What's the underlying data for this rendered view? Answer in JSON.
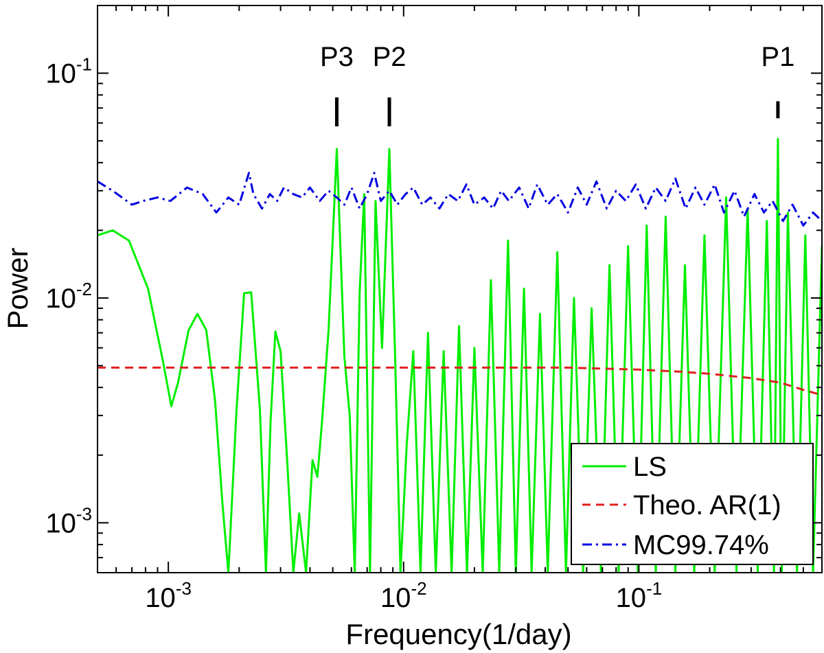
{
  "chart_data": {
    "type": "line",
    "title": "",
    "xlabel": "Frequency(1/day)",
    "ylabel": "Power",
    "xscale": "log",
    "yscale": "log",
    "xlim": [
      0.0005,
      0.6
    ],
    "ylim": [
      0.0006,
      0.2
    ],
    "x_ticks": [
      {
        "value": 0.001,
        "base": "10",
        "exp": "-3"
      },
      {
        "value": 0.01,
        "base": "10",
        "exp": "-2"
      },
      {
        "value": 0.1,
        "base": "10",
        "exp": "-1"
      }
    ],
    "y_ticks": [
      {
        "value": 0.001,
        "base": "10",
        "exp": "-3"
      },
      {
        "value": 0.01,
        "base": "10",
        "exp": "-2"
      },
      {
        "value": 0.1,
        "base": "10",
        "exp": "-1"
      }
    ],
    "annotations": [
      {
        "text": "P3",
        "x": 0.0052,
        "y_top": 0.078,
        "y_bottom": 0.058
      },
      {
        "text": "P2",
        "x": 0.0087,
        "y_top": 0.078,
        "y_bottom": 0.058
      },
      {
        "text": "P1",
        "x": 0.39,
        "y_top": 0.075,
        "y_bottom": 0.063
      }
    ],
    "legend": {
      "position": "bottom-right",
      "entries": [
        {
          "label": "LS",
          "series": "LS"
        },
        {
          "label": "Theo. AR(1)",
          "series": "AR1"
        },
        {
          "label": "MC99.74%",
          "series": "MC"
        }
      ]
    },
    "series": [
      {
        "name": "LS",
        "color": "#00ee00",
        "style": "solid",
        "x": [
          0.0005,
          0.00058,
          0.00068,
          0.00082,
          0.00095,
          0.00103,
          0.0011,
          0.00122,
          0.00133,
          0.00145,
          0.00158,
          0.0017,
          0.0018,
          0.00195,
          0.0021,
          0.00225,
          0.00245,
          0.0026,
          0.00272,
          0.00285,
          0.003,
          0.0032,
          0.0034,
          0.0036,
          0.00385,
          0.0041,
          0.0043,
          0.0045,
          0.0048,
          0.0052,
          0.0056,
          0.0059,
          0.0062,
          0.0065,
          0.0068,
          0.0072,
          0.0076,
          0.0081,
          0.0087,
          0.0092,
          0.0097,
          0.0103,
          0.011,
          0.0118,
          0.0127,
          0.0137,
          0.0148,
          0.016,
          0.0172,
          0.0186,
          0.02,
          0.0217,
          0.0235,
          0.0255,
          0.0278,
          0.03,
          0.0325,
          0.035,
          0.038,
          0.041,
          0.045,
          0.049,
          0.053,
          0.058,
          0.063,
          0.069,
          0.075,
          0.082,
          0.09,
          0.099,
          0.108,
          0.118,
          0.13,
          0.143,
          0.157,
          0.172,
          0.19,
          0.21,
          0.235,
          0.26,
          0.29,
          0.32,
          0.35,
          0.375,
          0.39,
          0.405,
          0.43,
          0.47,
          0.51,
          0.55,
          0.6
        ],
        "y": [
          0.019,
          0.02,
          0.018,
          0.011,
          0.0052,
          0.0033,
          0.0042,
          0.0072,
          0.0085,
          0.0072,
          0.0035,
          0.0012,
          0.0006,
          0.0032,
          0.0105,
          0.0106,
          0.0032,
          0.0006,
          0.0028,
          0.0071,
          0.0058,
          0.0019,
          0.0006,
          0.0011,
          0.0006,
          0.0019,
          0.0016,
          0.0028,
          0.0072,
          0.046,
          0.0055,
          0.003,
          0.0006,
          0.0105,
          0.029,
          0.0006,
          0.027,
          0.006,
          0.046,
          0.0055,
          0.0006,
          0.0022,
          0.0058,
          0.0006,
          0.007,
          0.0006,
          0.0058,
          0.0006,
          0.0075,
          0.0006,
          0.006,
          0.0006,
          0.012,
          0.0006,
          0.018,
          0.0006,
          0.011,
          0.0006,
          0.0085,
          0.0006,
          0.016,
          0.0006,
          0.01,
          0.0006,
          0.009,
          0.0006,
          0.014,
          0.0006,
          0.017,
          0.0006,
          0.021,
          0.0006,
          0.023,
          0.0006,
          0.014,
          0.0006,
          0.019,
          0.0006,
          0.028,
          0.0006,
          0.025,
          0.0006,
          0.022,
          0.0006,
          0.051,
          0.0006,
          0.024,
          0.0006,
          0.019,
          0.0006,
          0.017
        ]
      },
      {
        "name": "AR1",
        "color": "#e02020",
        "style": "dashed",
        "x": [
          0.0005,
          0.001,
          0.005,
          0.01,
          0.02,
          0.05,
          0.1,
          0.15,
          0.2,
          0.3,
          0.4,
          0.5,
          0.6
        ],
        "y": [
          0.0049,
          0.0049,
          0.0049,
          0.0049,
          0.0049,
          0.0049,
          0.0048,
          0.0047,
          0.0046,
          0.0044,
          0.0042,
          0.0039,
          0.0037
        ]
      },
      {
        "name": "MC",
        "color": "#0000e0",
        "style": "dashdot",
        "x": [
          0.0005,
          0.00058,
          0.0007,
          0.00078,
          0.0009,
          0.00102,
          0.0012,
          0.0014,
          0.0016,
          0.0018,
          0.002,
          0.0022,
          0.0023,
          0.0025,
          0.0027,
          0.0029,
          0.0031,
          0.0034,
          0.0037,
          0.004,
          0.0044,
          0.0048,
          0.0052,
          0.0056,
          0.006,
          0.0065,
          0.007,
          0.0075,
          0.008,
          0.0087,
          0.0094,
          0.0102,
          0.011,
          0.012,
          0.013,
          0.0142,
          0.0155,
          0.017,
          0.0185,
          0.02,
          0.022,
          0.024,
          0.026,
          0.028,
          0.031,
          0.034,
          0.037,
          0.041,
          0.045,
          0.05,
          0.055,
          0.06,
          0.066,
          0.073,
          0.08,
          0.088,
          0.097,
          0.107,
          0.118,
          0.13,
          0.143,
          0.158,
          0.174,
          0.19,
          0.21,
          0.23,
          0.255,
          0.28,
          0.31,
          0.34,
          0.37,
          0.41,
          0.45,
          0.5,
          0.55,
          0.6
        ],
        "y": [
          0.033,
          0.03,
          0.026,
          0.027,
          0.028,
          0.027,
          0.031,
          0.029,
          0.024,
          0.028,
          0.026,
          0.036,
          0.029,
          0.025,
          0.029,
          0.027,
          0.031,
          0.029,
          0.028,
          0.031,
          0.027,
          0.03,
          0.028,
          0.026,
          0.031,
          0.025,
          0.029,
          0.036,
          0.027,
          0.03,
          0.026,
          0.029,
          0.031,
          0.026,
          0.028,
          0.025,
          0.029,
          0.027,
          0.032,
          0.026,
          0.028,
          0.025,
          0.03,
          0.027,
          0.031,
          0.025,
          0.032,
          0.026,
          0.029,
          0.024,
          0.031,
          0.026,
          0.033,
          0.025,
          0.03,
          0.027,
          0.032,
          0.025,
          0.031,
          0.027,
          0.034,
          0.025,
          0.031,
          0.026,
          0.032,
          0.024,
          0.03,
          0.023,
          0.029,
          0.024,
          0.027,
          0.022,
          0.026,
          0.021,
          0.024,
          0.022
        ]
      }
    ]
  }
}
